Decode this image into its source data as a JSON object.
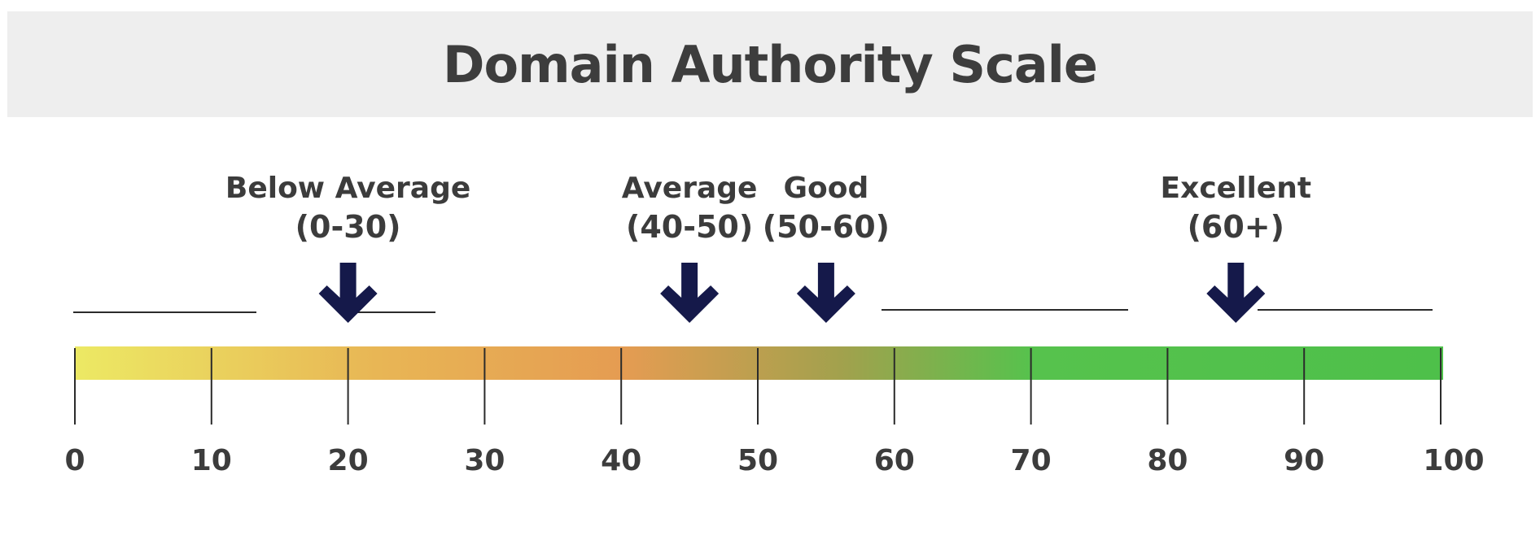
{
  "header": {
    "title": "Domain Authority Scale"
  },
  "scale": {
    "min": 0,
    "max": 100,
    "ticks": [
      {
        "value": 0,
        "label": "0"
      },
      {
        "value": 10,
        "label": "10"
      },
      {
        "value": 20,
        "label": "20"
      },
      {
        "value": 30,
        "label": "30"
      },
      {
        "value": 40,
        "label": "40"
      },
      {
        "value": 50,
        "label": "50"
      },
      {
        "value": 60,
        "label": "60"
      },
      {
        "value": 70,
        "label": "70"
      },
      {
        "value": 80,
        "label": "80"
      },
      {
        "value": 90,
        "label": "90"
      },
      {
        "value": 100,
        "label": "100"
      }
    ],
    "gradient_colors": [
      "#ece964",
      "#e8b655",
      "#e59c52",
      "#a2a14d",
      "#56c24d",
      "#4ec04a"
    ]
  },
  "markers": [
    {
      "name": "below-average",
      "value": 20,
      "line1": "Below Average",
      "line2": "(0-30)"
    },
    {
      "name": "average",
      "value": 45,
      "line1": "Average",
      "line2": "(40-50)"
    },
    {
      "name": "good",
      "value": 55,
      "line1": "Good",
      "line2": "(50-60)"
    },
    {
      "name": "excellent",
      "value": 85,
      "line1": "Excellent",
      "line2": "(60+)"
    }
  ],
  "colors": {
    "arrow": "#15194a",
    "text": "#3c3c3c",
    "title": "#3d3d3d"
  }
}
